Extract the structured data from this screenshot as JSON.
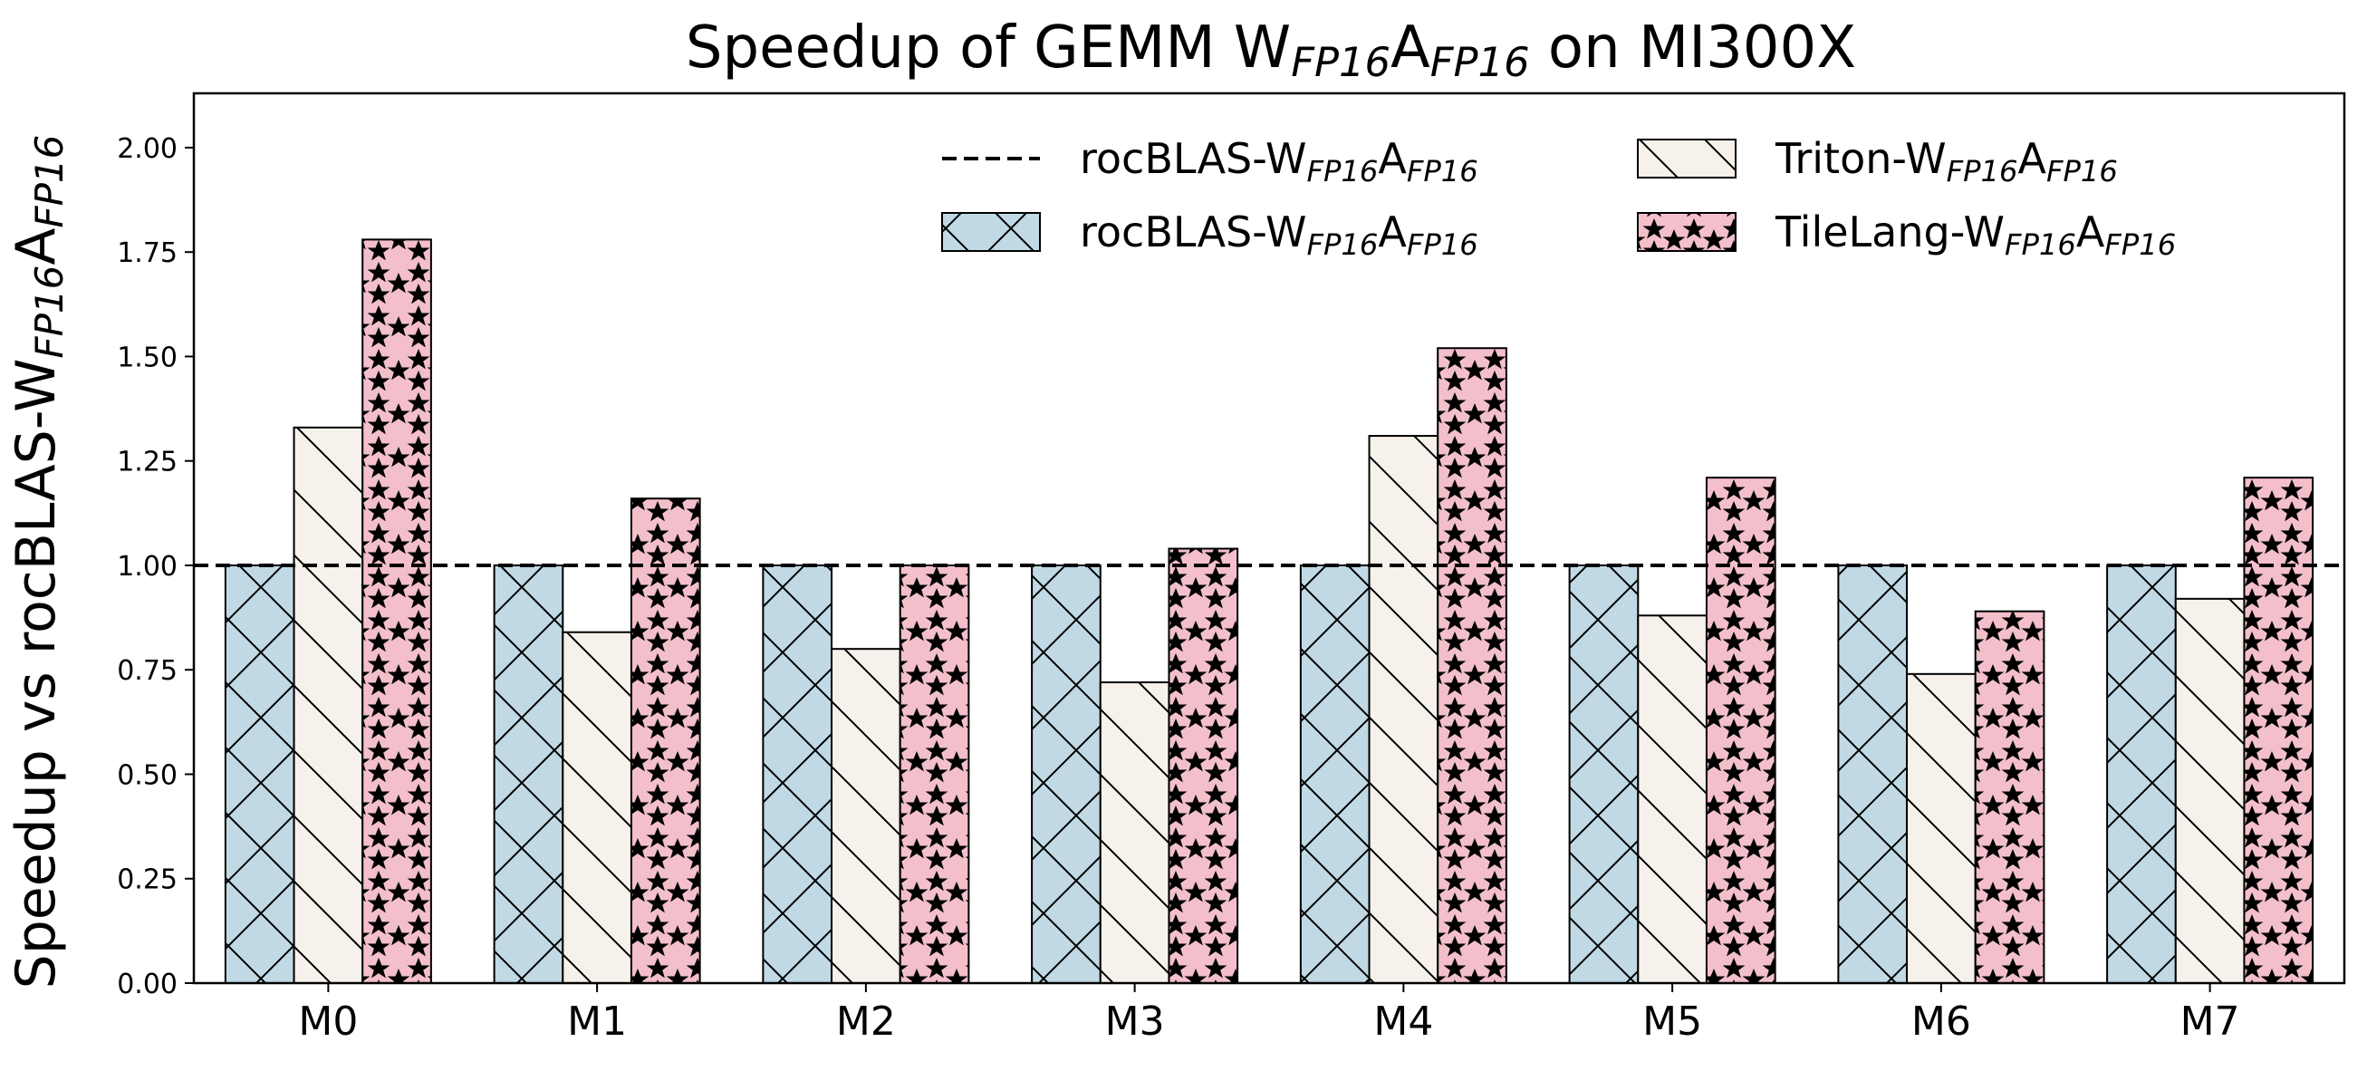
{
  "chart_data": {
    "type": "bar",
    "title": {
      "pre": "Speedup of GEMM W",
      "s1": "FP16",
      "mid": "A",
      "s2": "FP16",
      "post": " on MI300X"
    },
    "ylabel": {
      "pre": "Speedup vs rocBLAS-W",
      "s1": "FP16",
      "mid": "A",
      "s2": "FP16"
    },
    "xlabel": "",
    "ylim": [
      0,
      2.13
    ],
    "yticks": [
      "0.00",
      "0.25",
      "0.50",
      "0.75",
      "1.00",
      "1.25",
      "1.50",
      "1.75",
      "2.00"
    ],
    "categories": [
      "M0",
      "M1",
      "M2",
      "M3",
      "M4",
      "M5",
      "M6",
      "M7"
    ],
    "baseline": {
      "value": 1.0,
      "style": "dashed",
      "label": {
        "pre": "rocBLAS-W",
        "s1": "FP16",
        "mid": "A",
        "s2": "FP16"
      }
    },
    "series": [
      {
        "key": "rocblas",
        "label": {
          "pre": "rocBLAS-W",
          "s1": "FP16",
          "mid": "A",
          "s2": "FP16"
        },
        "color": "#c0d9e4",
        "hatch": "cross",
        "values": [
          1.0,
          1.0,
          1.0,
          1.0,
          1.0,
          1.0,
          1.0,
          1.0
        ]
      },
      {
        "key": "triton",
        "label": {
          "pre": "Triton-W",
          "s1": "FP16",
          "mid": "A",
          "s2": "FP16"
        },
        "color": "#f6f1ea",
        "hatch": "backslash",
        "values": [
          1.33,
          0.84,
          0.8,
          0.72,
          1.31,
          0.88,
          0.74,
          0.92
        ]
      },
      {
        "key": "tilelang",
        "label": {
          "pre": "TileLang-W",
          "s1": "FP16",
          "mid": "A",
          "s2": "FP16"
        },
        "color": "#f2bfca",
        "hatch": "star",
        "values": [
          1.78,
          1.16,
          1.0,
          1.04,
          1.52,
          1.21,
          0.89,
          1.21
        ]
      }
    ],
    "legend": "top-right",
    "grid": false
  }
}
